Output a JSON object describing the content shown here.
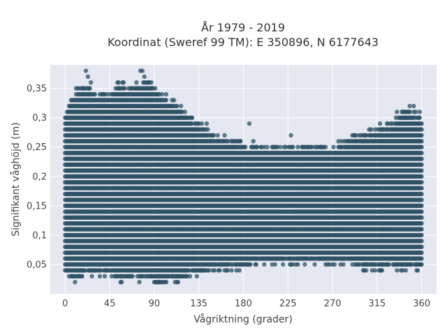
{
  "chart_data": {
    "type": "scatter",
    "title_lines": [
      "År 1979 - 2019",
      "Koordinat (Sweref 99 TM): E 350896, N 6177643"
    ],
    "xlabel": "Vågriktning (grader)",
    "ylabel": "Signifikant våghöjd (m)",
    "xlim": [
      -15,
      375
    ],
    "ylim": [
      0,
      0.39
    ],
    "xticks": [
      0,
      45,
      90,
      135,
      180,
      225,
      270,
      315,
      360
    ],
    "xtick_labels": [
      "0",
      "45",
      "90",
      "135",
      "180",
      "225",
      "270",
      "315",
      "360"
    ],
    "yticks": [
      0.05,
      0.1,
      0.15,
      0.2,
      0.25,
      0.3,
      0.35
    ],
    "ytick_labels": [
      "0,05",
      "0,1",
      "0,15",
      "0,2",
      "0,25",
      "0,3",
      "0,35"
    ],
    "grid": true,
    "marker_color": "#2e5266",
    "plot_background": "#e5e8f0",
    "y_resolution": 0.01,
    "x_resolution": 1,
    "envelope": [
      {
        "x": 0,
        "y_min": 0.04,
        "y_max": 0.31
      },
      {
        "x": 10,
        "y_min": 0.03,
        "y_max": 0.34
      },
      {
        "x": 20,
        "y_min": 0.04,
        "y_max": 0.36
      },
      {
        "x": 30,
        "y_min": 0.04,
        "y_max": 0.34
      },
      {
        "x": 45,
        "y_min": 0.04,
        "y_max": 0.34
      },
      {
        "x": 55,
        "y_min": 0.03,
        "y_max": 0.36
      },
      {
        "x": 65,
        "y_min": 0.04,
        "y_max": 0.35
      },
      {
        "x": 75,
        "y_min": 0.03,
        "y_max": 0.36
      },
      {
        "x": 85,
        "y_min": 0.03,
        "y_max": 0.36
      },
      {
        "x": 95,
        "y_min": 0.02,
        "y_max": 0.34
      },
      {
        "x": 105,
        "y_min": 0.03,
        "y_max": 0.33
      },
      {
        "x": 115,
        "y_min": 0.03,
        "y_max": 0.32
      },
      {
        "x": 125,
        "y_min": 0.04,
        "y_max": 0.3
      },
      {
        "x": 135,
        "y_min": 0.04,
        "y_max": 0.29
      },
      {
        "x": 150,
        "y_min": 0.05,
        "y_max": 0.27
      },
      {
        "x": 165,
        "y_min": 0.05,
        "y_max": 0.26
      },
      {
        "x": 180,
        "y_min": 0.05,
        "y_max": 0.26
      },
      {
        "x": 195,
        "y_min": 0.06,
        "y_max": 0.25
      },
      {
        "x": 210,
        "y_min": 0.06,
        "y_max": 0.25
      },
      {
        "x": 225,
        "y_min": 0.06,
        "y_max": 0.25
      },
      {
        "x": 240,
        "y_min": 0.06,
        "y_max": 0.25
      },
      {
        "x": 255,
        "y_min": 0.06,
        "y_max": 0.25
      },
      {
        "x": 270,
        "y_min": 0.06,
        "y_max": 0.25
      },
      {
        "x": 285,
        "y_min": 0.06,
        "y_max": 0.26
      },
      {
        "x": 300,
        "y_min": 0.05,
        "y_max": 0.27
      },
      {
        "x": 315,
        "y_min": 0.05,
        "y_max": 0.28
      },
      {
        "x": 330,
        "y_min": 0.05,
        "y_max": 0.29
      },
      {
        "x": 345,
        "y_min": 0.05,
        "y_max": 0.31
      },
      {
        "x": 360,
        "y_min": 0.05,
        "y_max": 0.3
      }
    ],
    "outliers": [
      {
        "x": 21,
        "y": 0.38
      },
      {
        "x": 23,
        "y": 0.37
      },
      {
        "x": 76,
        "y": 0.38
      },
      {
        "x": 78,
        "y": 0.38
      },
      {
        "x": 80,
        "y": 0.37
      },
      {
        "x": 58,
        "y": 0.36
      },
      {
        "x": 84,
        "y": 0.36
      },
      {
        "x": 26,
        "y": 0.36
      },
      {
        "x": 348,
        "y": 0.32
      },
      {
        "x": 352,
        "y": 0.32
      },
      {
        "x": 335,
        "y": 0.31
      },
      {
        "x": 342,
        "y": 0.31
      },
      {
        "x": 186,
        "y": 0.29
      },
      {
        "x": 228,
        "y": 0.27
      },
      {
        "x": 292,
        "y": 0.27
      },
      {
        "x": 304,
        "y": 0.27
      },
      {
        "x": 307,
        "y": 0.28
      },
      {
        "x": 161,
        "y": 0.27
      },
      {
        "x": 143,
        "y": 0.29
      },
      {
        "x": 128,
        "y": 0.3
      },
      {
        "x": 132,
        "y": 0.29
      },
      {
        "x": 170,
        "y": 0.25
      },
      {
        "x": 177,
        "y": 0.26
      },
      {
        "x": 198,
        "y": 0.25
      },
      {
        "x": 2,
        "y": 0.04
      },
      {
        "x": 14,
        "y": 0.03
      },
      {
        "x": 17,
        "y": 0.03
      },
      {
        "x": 47,
        "y": 0.03
      },
      {
        "x": 50,
        "y": 0.03
      },
      {
        "x": 68,
        "y": 0.03
      },
      {
        "x": 92,
        "y": 0.02
      },
      {
        "x": 95,
        "y": 0.02
      },
      {
        "x": 102,
        "y": 0.02
      },
      {
        "x": 108,
        "y": 0.03
      },
      {
        "x": 113,
        "y": 0.02
      },
      {
        "x": 126,
        "y": 0.03
      },
      {
        "x": 131,
        "y": 0.04
      },
      {
        "x": 142,
        "y": 0.04
      },
      {
        "x": 151,
        "y": 0.04
      },
      {
        "x": 183,
        "y": 0.05
      },
      {
        "x": 212,
        "y": 0.05
      },
      {
        "x": 304,
        "y": 0.05
      },
      {
        "x": 320,
        "y": 0.05
      },
      {
        "x": 341,
        "y": 0.04
      },
      {
        "x": 344,
        "y": 0.04
      },
      {
        "x": 355,
        "y": 0.05
      },
      {
        "x": 359,
        "y": 0.05
      }
    ]
  }
}
